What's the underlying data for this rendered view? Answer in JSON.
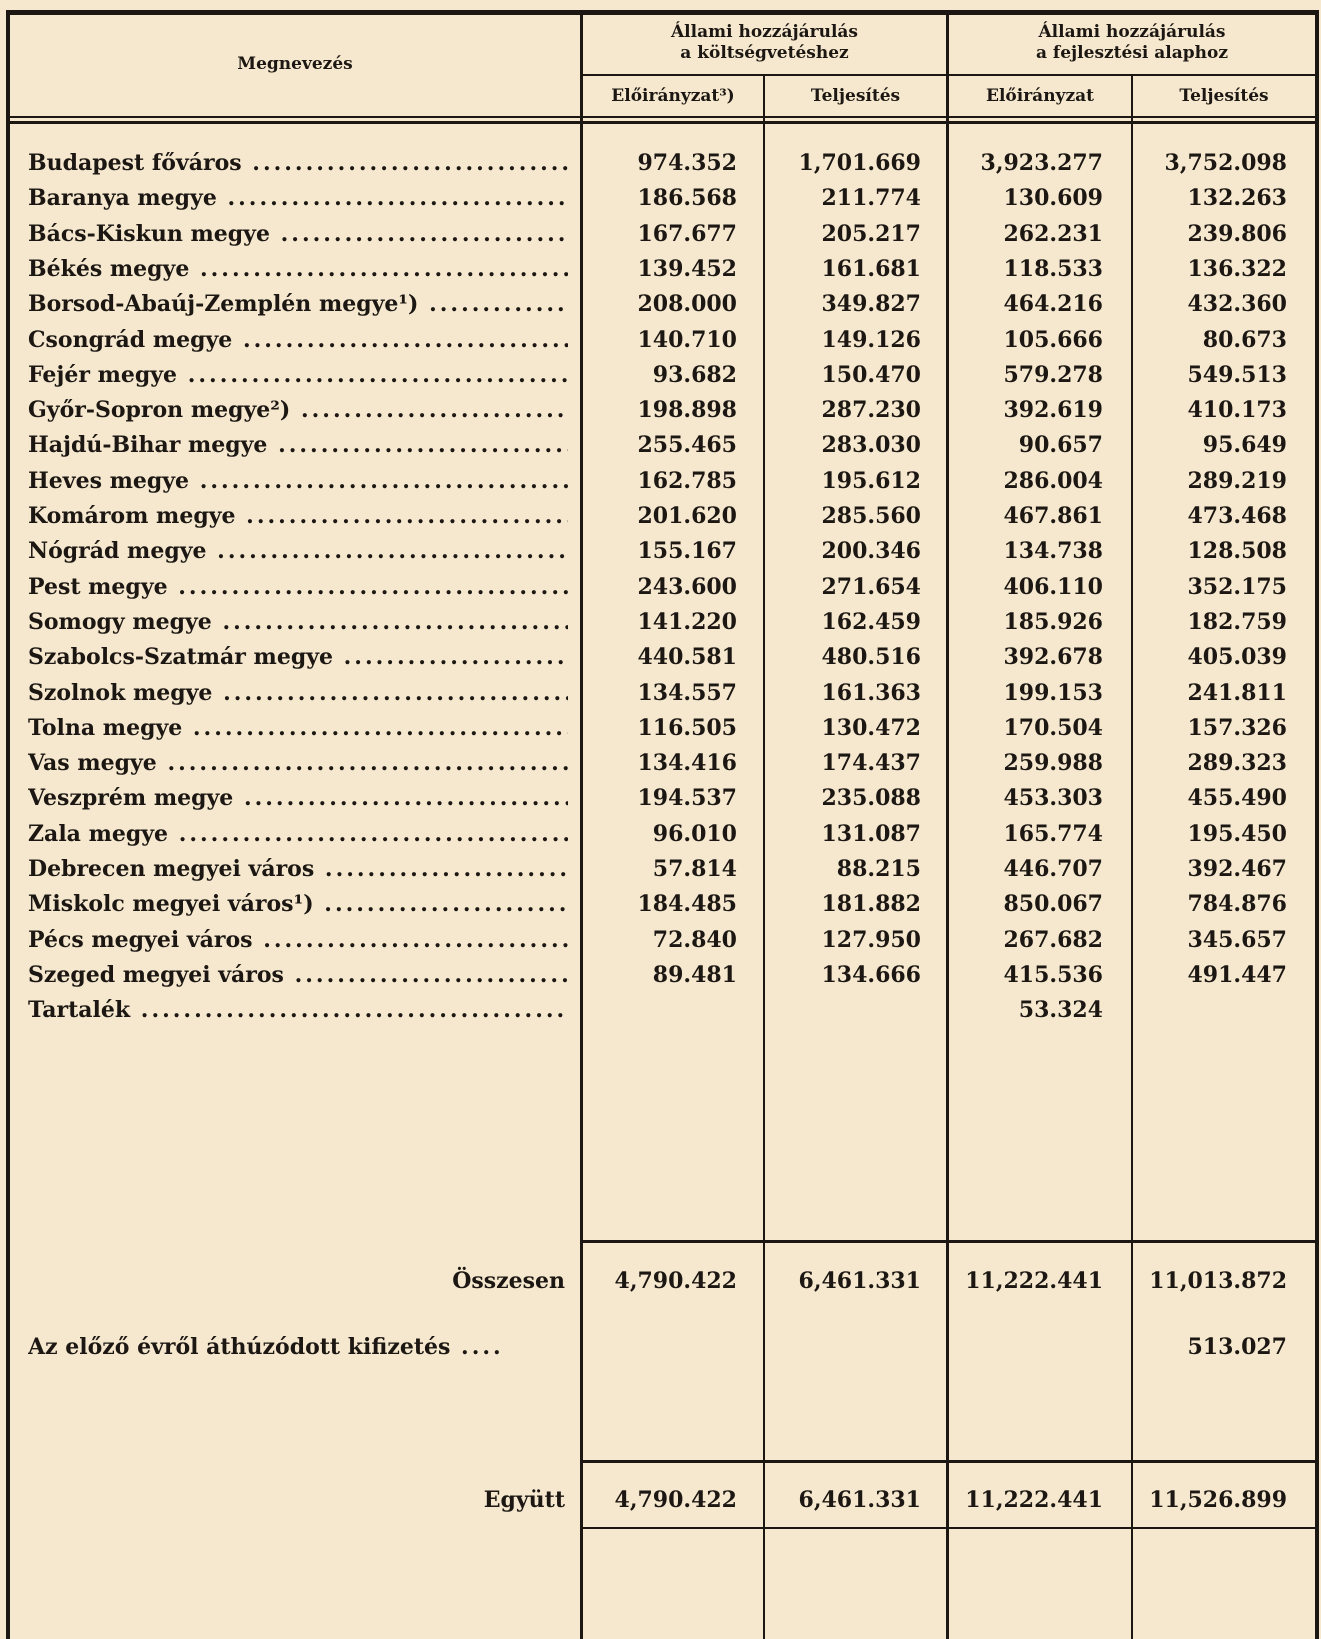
{
  "header": {
    "name_col": "Megnevezés",
    "group1": [
      "Állami hozzájárulás",
      "a költségvetéshez"
    ],
    "group2": [
      "Állami hozzájárulás",
      "a fejlesztési alaphoz"
    ],
    "sub": [
      "Előirányzat³)",
      "Teljesítés",
      "Előirányzat",
      "Teljesítés"
    ]
  },
  "rows": [
    {
      "name": "Budapest főváros",
      "v": [
        "974.352",
        "1,701.669",
        "3,923.277",
        "3,752.098"
      ]
    },
    {
      "name": "Baranya megye",
      "v": [
        "186.568",
        "211.774",
        "130.609",
        "132.263"
      ]
    },
    {
      "name": "Bács-Kiskun megye",
      "v": [
        "167.677",
        "205.217",
        "262.231",
        "239.806"
      ]
    },
    {
      "name": "Békés megye",
      "v": [
        "139.452",
        "161.681",
        "118.533",
        "136.322"
      ]
    },
    {
      "name": "Borsod-Abaúj-Zemplén megye¹)",
      "v": [
        "208.000",
        "349.827",
        "464.216",
        "432.360"
      ]
    },
    {
      "name": "Csongrád megye",
      "v": [
        "140.710",
        "149.126",
        "105.666",
        "80.673"
      ]
    },
    {
      "name": "Fejér megye",
      "v": [
        "93.682",
        "150.470",
        "579.278",
        "549.513"
      ]
    },
    {
      "name": "Győr-Sopron megye²)",
      "v": [
        "198.898",
        "287.230",
        "392.619",
        "410.173"
      ]
    },
    {
      "name": "Hajdú-Bihar megye",
      "v": [
        "255.465",
        "283.030",
        "90.657",
        "95.649"
      ]
    },
    {
      "name": "Heves megye",
      "v": [
        "162.785",
        "195.612",
        "286.004",
        "289.219"
      ]
    },
    {
      "name": "Komárom megye",
      "v": [
        "201.620",
        "285.560",
        "467.861",
        "473.468"
      ]
    },
    {
      "name": "Nógrád megye",
      "v": [
        "155.167",
        "200.346",
        "134.738",
        "128.508"
      ]
    },
    {
      "name": "Pest megye",
      "v": [
        "243.600",
        "271.654",
        "406.110",
        "352.175"
      ]
    },
    {
      "name": "Somogy megye",
      "v": [
        "141.220",
        "162.459",
        "185.926",
        "182.759"
      ]
    },
    {
      "name": "Szabolcs-Szatmár megye",
      "v": [
        "440.581",
        "480.516",
        "392.678",
        "405.039"
      ]
    },
    {
      "name": "Szolnok megye",
      "v": [
        "134.557",
        "161.363",
        "199.153",
        "241.811"
      ]
    },
    {
      "name": "Tolna megye",
      "v": [
        "116.505",
        "130.472",
        "170.504",
        "157.326"
      ]
    },
    {
      "name": "Vas megye",
      "v": [
        "134.416",
        "174.437",
        "259.988",
        "289.323"
      ]
    },
    {
      "name": "Veszprém megye",
      "v": [
        "194.537",
        "235.088",
        "453.303",
        "455.490"
      ]
    },
    {
      "name": "Zala megye",
      "v": [
        "96.010",
        "131.087",
        "165.774",
        "195.450"
      ]
    },
    {
      "name": "Debrecen megyei város",
      "v": [
        "57.814",
        "88.215",
        "446.707",
        "392.467"
      ]
    },
    {
      "name": "Miskolc megyei város¹)",
      "v": [
        "184.485",
        "181.882",
        "850.067",
        "784.876"
      ]
    },
    {
      "name": "Pécs megyei város",
      "v": [
        "72.840",
        "127.950",
        "267.682",
        "345.657"
      ]
    },
    {
      "name": "Szeged megyei város",
      "v": [
        "89.481",
        "134.666",
        "415.536",
        "491.447"
      ]
    },
    {
      "name": "Tartalék",
      "v": [
        "",
        "",
        "53.324",
        ""
      ]
    }
  ],
  "totals": [
    {
      "name": "Összesen",
      "v": [
        "4,790.422",
        "6,461.331",
        "11,222.441",
        "11,013.872"
      ],
      "align": "right"
    },
    {
      "name": "Az előző évről áthúzódott kifizetés",
      "v": [
        "",
        "",
        "",
        "513.027"
      ],
      "align": "left"
    },
    {
      "name": "Együtt",
      "v": [
        "4,790.422",
        "6,461.331",
        "11,222.441",
        "11,526.899"
      ],
      "align": "right"
    }
  ]
}
